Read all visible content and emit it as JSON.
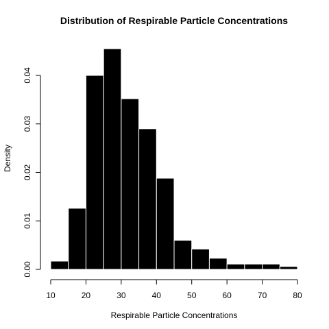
{
  "chart_data": {
    "type": "bar",
    "title": "Distribution of Respirable Particle Concentrations",
    "xlabel": "Respirable Particle Concentrations",
    "ylabel": "Density",
    "bins": [
      {
        "from": 10,
        "to": 15,
        "density": 0.0017
      },
      {
        "from": 15,
        "to": 20,
        "density": 0.0126
      },
      {
        "from": 20,
        "to": 25,
        "density": 0.04
      },
      {
        "from": 25,
        "to": 30,
        "density": 0.0455
      },
      {
        "from": 30,
        "to": 35,
        "density": 0.0352
      },
      {
        "from": 35,
        "to": 40,
        "density": 0.029
      },
      {
        "from": 40,
        "to": 45,
        "density": 0.0188
      },
      {
        "from": 45,
        "to": 50,
        "density": 0.006
      },
      {
        "from": 50,
        "to": 55,
        "density": 0.0042
      },
      {
        "from": 55,
        "to": 60,
        "density": 0.0023
      },
      {
        "from": 60,
        "to": 65,
        "density": 0.0011
      },
      {
        "from": 65,
        "to": 70,
        "density": 0.0011
      },
      {
        "from": 70,
        "to": 75,
        "density": 0.0011
      },
      {
        "from": 75,
        "to": 80,
        "density": 0.0006
      }
    ],
    "x_ticks": [
      "10",
      "20",
      "30",
      "40",
      "50",
      "60",
      "70",
      "80"
    ],
    "y_ticks": [
      "0.00",
      "0.01",
      "0.02",
      "0.03",
      "0.04"
    ],
    "xlim": [
      10,
      80
    ],
    "ylim": [
      0,
      0.04
    ],
    "bar_color": "#000000",
    "bar_border_color": "#ffffff",
    "grid": false,
    "legend": "none"
  }
}
